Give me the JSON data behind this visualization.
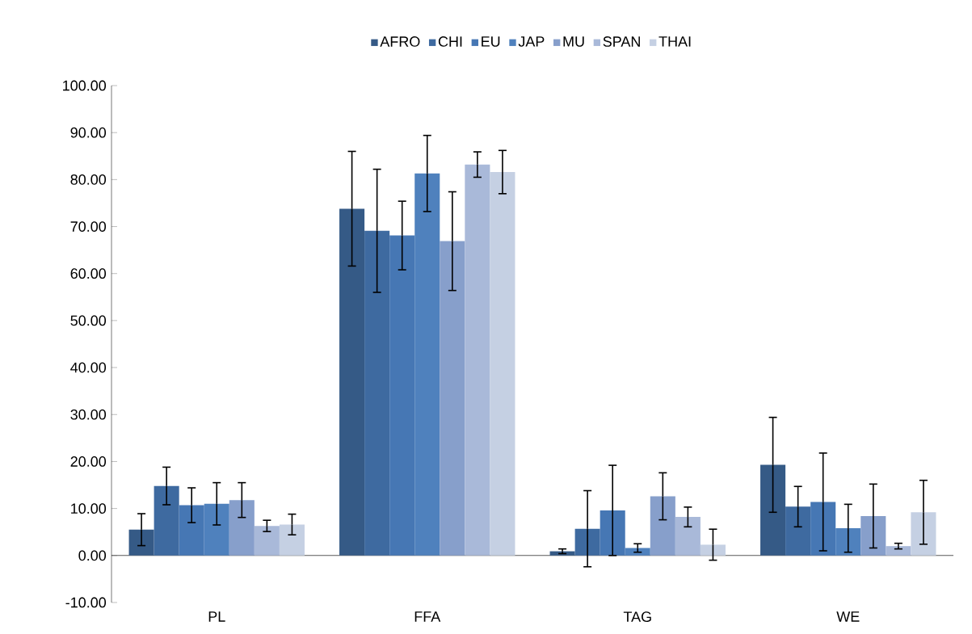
{
  "chart_data": {
    "type": "bar",
    "categories": [
      "PL",
      "FFA",
      "TAG",
      "WE"
    ],
    "series": [
      {
        "name": "AFRO",
        "color": "#355a86",
        "values": [
          5.5,
          73.8,
          0.9,
          19.3
        ],
        "errors": [
          3.4,
          12.2,
          0.5,
          10.1
        ]
      },
      {
        "name": "CHI",
        "color": "#3e6aa0",
        "values": [
          14.8,
          69.1,
          5.7,
          10.4
        ],
        "errors": [
          4.0,
          13.1,
          8.1,
          4.3
        ]
      },
      {
        "name": "EU",
        "color": "#4677b4",
        "values": [
          10.7,
          68.1,
          9.6,
          11.4
        ],
        "errors": [
          3.7,
          7.3,
          9.6,
          10.4
        ]
      },
      {
        "name": "JAP",
        "color": "#4f81bd",
        "values": [
          11.0,
          81.3,
          1.6,
          5.8
        ],
        "errors": [
          4.5,
          8.1,
          0.9,
          5.1
        ]
      },
      {
        "name": "MU",
        "color": "#879fcb",
        "values": [
          11.8,
          66.9,
          12.6,
          8.4
        ],
        "errors": [
          3.7,
          10.5,
          5.0,
          6.8
        ]
      },
      {
        "name": "SPAN",
        "color": "#a9b9d9",
        "values": [
          6.3,
          83.2,
          8.2,
          2.0
        ],
        "errors": [
          1.2,
          2.7,
          2.1,
          0.6
        ]
      },
      {
        "name": "THAI",
        "color": "#c5d0e3",
        "values": [
          6.6,
          81.6,
          2.3,
          9.2
        ],
        "errors": [
          2.2,
          4.6,
          3.3,
          6.8
        ]
      }
    ],
    "ylim": [
      -10,
      100
    ],
    "yticks": [
      {
        "value": -10,
        "label": "-10.00"
      },
      {
        "value": 0,
        "label": "0.00"
      },
      {
        "value": 10,
        "label": "10.00"
      },
      {
        "value": 20,
        "label": "20.00"
      },
      {
        "value": 30,
        "label": "30.00"
      },
      {
        "value": 40,
        "label": "40.00"
      },
      {
        "value": 50,
        "label": "50.00"
      },
      {
        "value": 60,
        "label": "60.00"
      },
      {
        "value": 70,
        "label": "70.00"
      },
      {
        "value": 80,
        "label": "80.00"
      },
      {
        "value": 90,
        "label": "90.00"
      },
      {
        "value": 100,
        "label": "100.00"
      }
    ],
    "legend": "top"
  }
}
